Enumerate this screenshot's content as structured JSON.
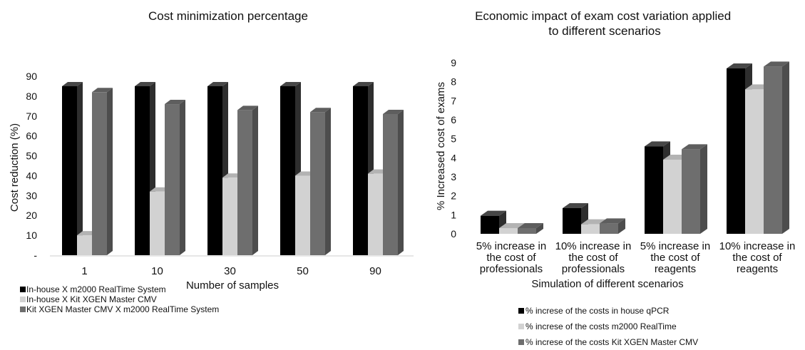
{
  "chart_data": [
    {
      "type": "bar",
      "title": "Cost minimization percentage",
      "xlabel": "Number of samples",
      "ylabel": "Cost reduction (%)",
      "ylim": [
        0,
        90
      ],
      "yticks": [
        "-",
        "10",
        "20",
        "30",
        "40",
        "50",
        "60",
        "70",
        "80",
        "90"
      ],
      "categories": [
        "1",
        "10",
        "30",
        "50",
        "90"
      ],
      "series": [
        {
          "name": "In-house X m2000 RealTime System",
          "color": "#000000",
          "values": [
            85,
            85,
            85,
            85,
            85
          ]
        },
        {
          "name": "In-house X Kit XGEN Master CMV",
          "color": "#d2d2d2",
          "values": [
            10,
            32,
            39,
            40,
            41
          ]
        },
        {
          "name": "Kit XGEN Master CMV X m2000 RealTime System",
          "color": "#6e6e6e",
          "values": [
            82,
            76,
            73,
            72,
            71
          ]
        }
      ],
      "legend_position": "bottom-left",
      "grid": false
    },
    {
      "type": "bar",
      "title": "Economic impact of exam cost variation applied to different scenarios",
      "xlabel": "Simulation of different scenarios",
      "ylabel": "% Increased cost of exams",
      "ylim": [
        0,
        9
      ],
      "yticks": [
        "0",
        "1",
        "2",
        "3",
        "4",
        "5",
        "6",
        "7",
        "8",
        "9"
      ],
      "categories": [
        "5% increase in the cost of professionals",
        "10% increase in the cost of professionals",
        "5% increase in the cost of reagents",
        "10% increase in the cost of reagents"
      ],
      "series": [
        {
          "name": "% increse of the costs in house qPCR",
          "color": "#000000",
          "values": [
            0.95,
            1.35,
            4.6,
            8.7
          ]
        },
        {
          "name": "% increse of the costs m2000 RealTime",
          "color": "#d2d2d2",
          "values": [
            0.3,
            0.5,
            3.9,
            7.6
          ]
        },
        {
          "name": "% increse of the costs Kit XGEN Master CMV",
          "color": "#6e6e6e",
          "values": [
            0.3,
            0.55,
            4.45,
            8.8
          ]
        }
      ],
      "legend_position": "bottom",
      "grid": false
    }
  ]
}
